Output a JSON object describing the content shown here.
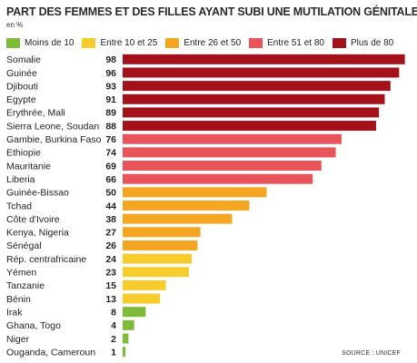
{
  "chart_data": {
    "type": "bar",
    "title": "PART DES FEMMES ET DES FILLES AYANT SUBI UNE MUTILATION GÉNITALE",
    "unit": "en %",
    "source": "SOURCE : UNICEF",
    "orientation": "horizontal",
    "xlim": [
      0,
      100
    ],
    "grid": false,
    "legend": [
      {
        "label": "Moins de 10",
        "color": "#7dbb38"
      },
      {
        "label": "Entre 10 et 25",
        "color": "#f7cd2e"
      },
      {
        "label": "Entre 26 et 50",
        "color": "#f4a623"
      },
      {
        "label": "Entre 51 et 80",
        "color": "#e9535a"
      },
      {
        "label": "Plus de 80",
        "color": "#a3111a"
      }
    ],
    "categories": [
      "Somalie",
      "Guinée",
      "Djibouti",
      "Egypte",
      "Erythrée, Mali",
      "Sierra Leone, Soudan",
      "Gambie, Burkina Faso",
      "Ethiopie",
      "Mauritanie",
      "Liberia",
      "Guinée-Bissao",
      "Tchad",
      "Côte d'Ivoire",
      "Kenya, Nigeria",
      "Sénégal",
      "Rép. centrafricaine",
      "Yémen",
      "Tanzanie",
      "Bénin",
      "Irak",
      "Ghana, Togo",
      "Niger",
      "Ouganda, Cameroun"
    ],
    "values": [
      98,
      96,
      93,
      91,
      89,
      88,
      76,
      74,
      69,
      66,
      50,
      44,
      38,
      27,
      26,
      24,
      23,
      15,
      13,
      8,
      4,
      2,
      1
    ]
  }
}
